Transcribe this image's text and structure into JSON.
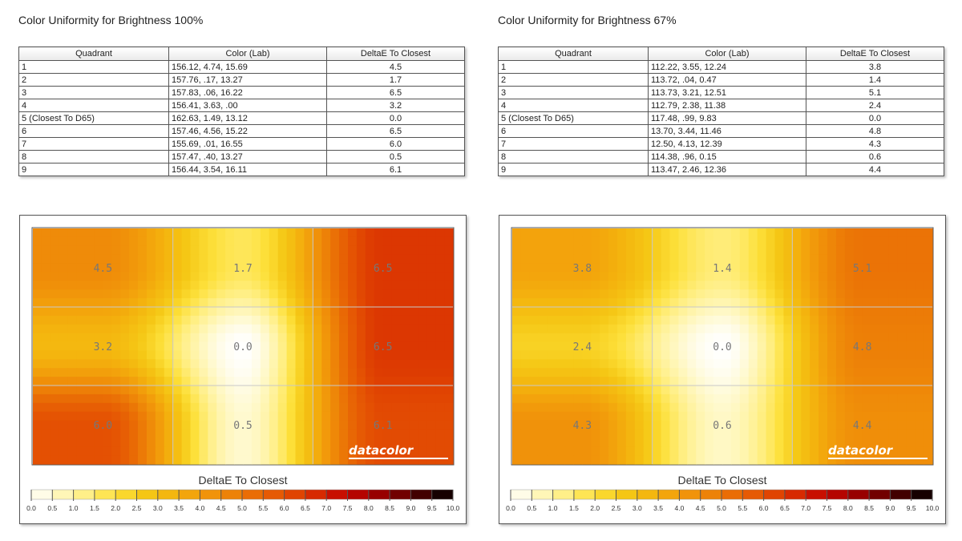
{
  "panels": [
    {
      "title": "Color Uniformity for Brightness 100%",
      "table": {
        "headers": [
          "Quadrant",
          "Color (Lab)",
          "DeltaE To Closest"
        ],
        "rows": [
          {
            "quadrant": "1",
            "lab": "156.12,  4.74,  15.69",
            "deltae": "4.5"
          },
          {
            "quadrant": "2",
            "lab": "157.76,   .17,  13.27",
            "deltae": "1.7"
          },
          {
            "quadrant": "3",
            "lab": "157.83,   .06,  16.22",
            "deltae": "6.5"
          },
          {
            "quadrant": "4",
            "lab": "156.41,  3.63,   .00",
            "deltae": "3.2"
          },
          {
            "quadrant": "5 (Closest To D65)",
            "lab": "162.63,  1.49,  13.12",
            "deltae": "0.0"
          },
          {
            "quadrant": "6",
            "lab": "157.46,  4.56,  15.22",
            "deltae": "6.5"
          },
          {
            "quadrant": "7",
            "lab": "155.69,   .01,  16.55",
            "deltae": "6.0"
          },
          {
            "quadrant": "8",
            "lab": "157.47,   .40,  13.27",
            "deltae": "0.5"
          },
          {
            "quadrant": "9",
            "lab": "156.44,  3.54,  16.11",
            "deltae": "6.1"
          }
        ]
      },
      "brand": "datacolor"
    },
    {
      "title": "Color Uniformity for Brightness 67%",
      "table": {
        "headers": [
          "Quadrant",
          "Color (Lab)",
          "DeltaE To Closest"
        ],
        "rows": [
          {
            "quadrant": "1",
            "lab": "112.22,  3.55,  12.24",
            "deltae": "3.8"
          },
          {
            "quadrant": "2",
            "lab": "113.72,   .04,  0.47",
            "deltae": "1.4"
          },
          {
            "quadrant": "3",
            "lab": "113.73,  3.21,  12.51",
            "deltae": "5.1"
          },
          {
            "quadrant": "4",
            "lab": "112.79,  2.38,  11.38",
            "deltae": "2.4"
          },
          {
            "quadrant": "5 (Closest To D65)",
            "lab": "117.48,   .99,  9.83",
            "deltae": "0.0"
          },
          {
            "quadrant": "6",
            "lab": "13.70,  3.44,  11.46",
            "deltae": "4.8"
          },
          {
            "quadrant": "7",
            "lab": "12.50,  4.13,  12.39",
            "deltae": "4.3"
          },
          {
            "quadrant": "8",
            "lab": "114.38,   .96,  0.15",
            "deltae": "0.6"
          },
          {
            "quadrant": "9",
            "lab": "113.47,  2.46,  12.36",
            "deltae": "4.4"
          }
        ]
      },
      "brand": "datacolor"
    }
  ],
  "chart_data": [
    {
      "type": "heatmap",
      "title": "Color Uniformity for Brightness 100%",
      "legend_title": "DeltaE To Closest",
      "grid": [
        [
          4.5,
          1.7,
          6.5
        ],
        [
          3.2,
          0.0,
          6.5
        ],
        [
          6.0,
          0.5,
          6.1
        ]
      ],
      "labels": [
        "4.5",
        "1.7",
        "6.5",
        "3.2",
        "0.0",
        "6.5",
        "6.0",
        "0.5",
        "6.1"
      ],
      "scale_ticks": [
        "0.0",
        "0.5",
        "1.0",
        "1.5",
        "2.0",
        "2.5",
        "3.0",
        "3.5",
        "4.0",
        "4.5",
        "5.0",
        "5.5",
        "6.0",
        "6.5",
        "7.0",
        "7.5",
        "8.0",
        "8.5",
        "9.0",
        "9.5",
        "10.0"
      ],
      "scale_range": [
        0,
        10
      ],
      "scale_colors": [
        "#ffffff",
        "#fff7bf",
        "#ffee80",
        "#fde03a",
        "#f5c816",
        "#f4b40e",
        "#f29c0b",
        "#ee8508",
        "#e96a05",
        "#e45003",
        "#d92f01",
        "#c60a00",
        "#aa0000",
        "#7a0000",
        "#3a0000",
        "#000000"
      ]
    },
    {
      "type": "heatmap",
      "title": "Color Uniformity for Brightness 67%",
      "legend_title": "DeltaE To Closest",
      "grid": [
        [
          3.8,
          1.4,
          5.1
        ],
        [
          2.4,
          0.0,
          4.8
        ],
        [
          4.3,
          0.6,
          4.4
        ]
      ],
      "labels": [
        "3.8",
        "1.4",
        "5.1",
        "2.4",
        "0.0",
        "4.8",
        "4.3",
        "0.6",
        "4.4"
      ],
      "scale_ticks": [
        "0.0",
        "0.5",
        "1.0",
        "1.5",
        "2.0",
        "2.5",
        "3.0",
        "3.5",
        "4.0",
        "4.5",
        "5.0",
        "5.5",
        "6.0",
        "6.5",
        "7.0",
        "7.5",
        "8.0",
        "8.5",
        "9.0",
        "9.5",
        "10.0"
      ],
      "scale_range": [
        0,
        10
      ],
      "scale_colors": [
        "#ffffff",
        "#fff7bf",
        "#ffee80",
        "#fde03a",
        "#f5c816",
        "#f4b40e",
        "#f29c0b",
        "#ee8508",
        "#e96a05",
        "#e45003",
        "#d92f01",
        "#c60a00",
        "#aa0000",
        "#7a0000",
        "#3a0000",
        "#000000"
      ]
    }
  ]
}
